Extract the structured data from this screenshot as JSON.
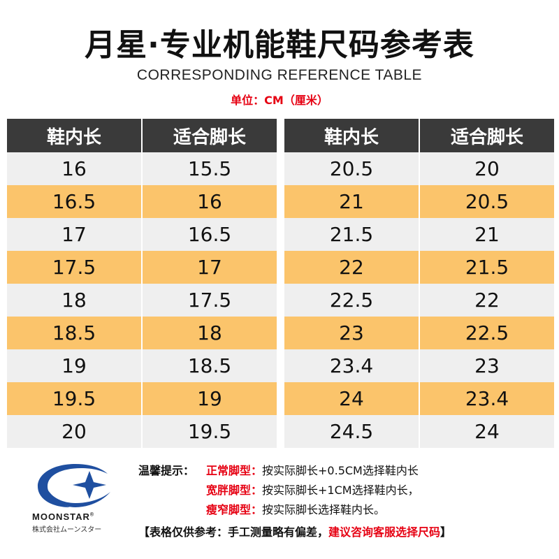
{
  "title": "月星·专业机能鞋尺码参考表",
  "subtitle": "CORRESPONDING REFERENCE TABLE",
  "unit": "单位：CM（厘米）",
  "columns": [
    "鞋内长",
    "适合脚长"
  ],
  "left_rows": [
    [
      "16",
      "15.5"
    ],
    [
      "16.5",
      "16"
    ],
    [
      "17",
      "16.5"
    ],
    [
      "17.5",
      "17"
    ],
    [
      "18",
      "17.5"
    ],
    [
      "18.5",
      "18"
    ],
    [
      "19",
      "18.5"
    ],
    [
      "19.5",
      "19"
    ],
    [
      "20",
      "19.5"
    ]
  ],
  "right_rows": [
    [
      "20.5",
      "20"
    ],
    [
      "21",
      "20.5"
    ],
    [
      "21.5",
      "21"
    ],
    [
      "22",
      "21.5"
    ],
    [
      "22.5",
      "22"
    ],
    [
      "23",
      "22.5"
    ],
    [
      "23.4",
      "23"
    ],
    [
      "24",
      "23.4"
    ],
    [
      "24.5",
      "24"
    ]
  ],
  "colors": {
    "header_bg": "#3a3a3a",
    "row_gray": "#efefef",
    "row_orange": "#fbc46b",
    "accent_red": "#e60012",
    "logo_blue": "#1f4fa0"
  },
  "logo": {
    "word": "MOONSTAR",
    "registered": "®",
    "jp": "株式会社ムーンスター",
    "icon": "moonstar-logo-icon"
  },
  "tips": {
    "lead": "温馨提示：",
    "items": [
      {
        "type": "正常脚型：",
        "text": "按实际脚长+0.5CM选择鞋内长"
      },
      {
        "type": "宽胖脚型：",
        "text": "按实际脚长+1CM选择鞋内长，"
      },
      {
        "type": "瘦窄脚型：",
        "text": "按实际脚长选择鞋内长。"
      }
    ]
  },
  "note": {
    "open": "【",
    "black": "表格仅供参考：手工测量略有偏差，",
    "red": "建议咨询客服选择尺码",
    "close": "】"
  }
}
